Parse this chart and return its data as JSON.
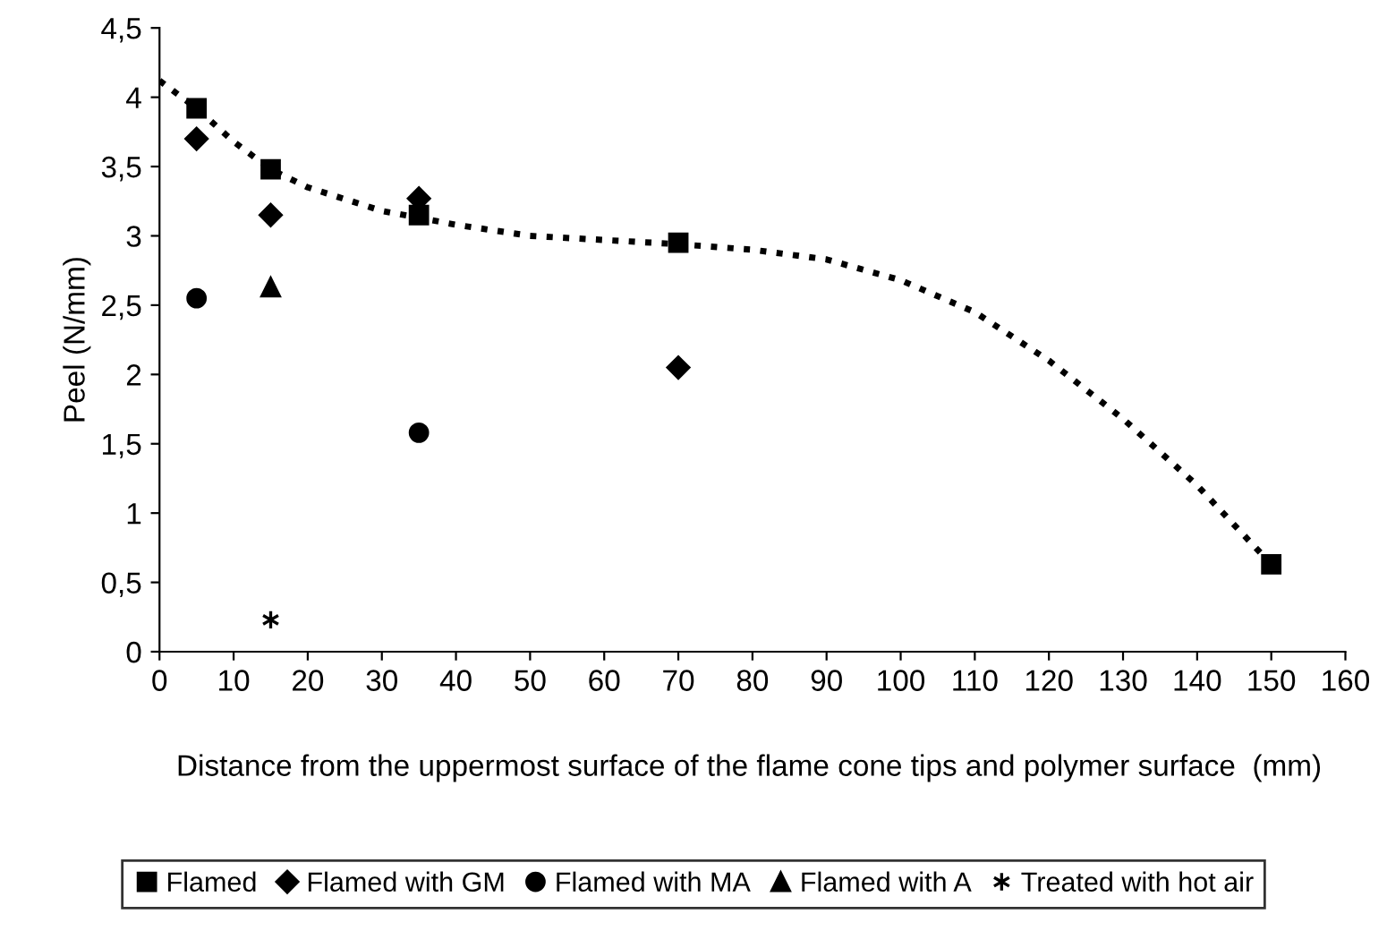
{
  "chart_data": {
    "type": "scatter",
    "xlabel": "Distance from the uppermost surface of the flame cone tips and polymer surface  (mm)",
    "ylabel": "Peel (N/mm)",
    "xlim": [
      0,
      160
    ],
    "xticks": [
      0,
      10,
      20,
      30,
      40,
      50,
      60,
      70,
      80,
      90,
      100,
      110,
      120,
      130,
      140,
      150,
      160
    ],
    "ylim": [
      0,
      4.5
    ],
    "yticks": [
      0,
      {
        "value": 0.5,
        "label": "0,5"
      },
      1,
      {
        "value": 1.5,
        "label": "1,5"
      },
      2,
      {
        "value": 2.5,
        "label": "2,5"
      },
      3,
      {
        "value": 3.5,
        "label": "3,5"
      },
      4,
      {
        "value": 4.5,
        "label": "4,5"
      }
    ],
    "grid": false,
    "legend": "bottom",
    "series": [
      {
        "type": "line",
        "line_style": "dotted",
        "marker": "none",
        "color": "#000000",
        "x": [
          0,
          5,
          10,
          15,
          20,
          30,
          40,
          50,
          60,
          70,
          80,
          90,
          100,
          110,
          120,
          130,
          140,
          150
        ],
        "values": [
          4.12,
          3.92,
          3.68,
          3.48,
          3.35,
          3.18,
          3.08,
          3.0,
          2.97,
          2.94,
          2.9,
          2.83,
          2.68,
          2.45,
          2.1,
          1.68,
          1.2,
          0.63
        ]
      },
      {
        "name": "Flamed",
        "marker": "square",
        "color": "#000000",
        "x": [
          5,
          15,
          35,
          70,
          150
        ],
        "values": [
          3.92,
          3.48,
          3.15,
          2.95,
          0.63
        ]
      },
      {
        "name": "Flamed with GM",
        "marker": "diamond",
        "color": "#000000",
        "x": [
          5,
          15,
          35,
          70
        ],
        "values": [
          3.7,
          3.15,
          3.27,
          2.05
        ]
      },
      {
        "name": "Flamed with MA",
        "marker": "circle",
        "color": "#000000",
        "x": [
          5,
          35
        ],
        "values": [
          2.55,
          1.58
        ]
      },
      {
        "name": "Flamed with A",
        "marker": "triangle",
        "color": "#000000",
        "x": [
          15
        ],
        "values": [
          2.63
        ]
      },
      {
        "name": "Treated with hot air",
        "marker": "cross",
        "color": "#000000",
        "x": [
          15
        ],
        "values": [
          0.23
        ]
      }
    ]
  }
}
